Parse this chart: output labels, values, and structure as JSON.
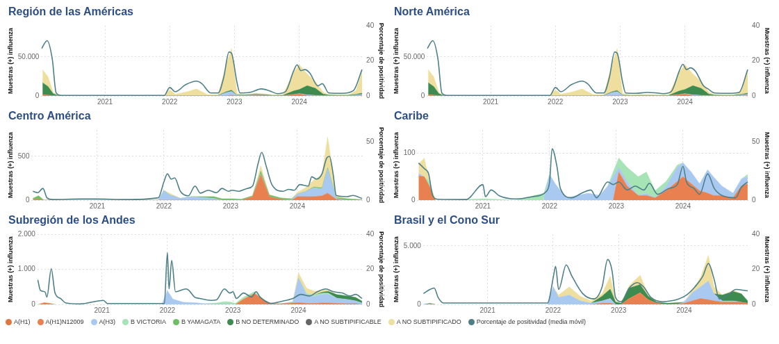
{
  "chart_data": [
    {
      "type": "area",
      "title": "Región de las Américas",
      "ylabel": "Muestras (+) influenza",
      "y2label": "Porcentaje de positividad",
      "stacked": true,
      "grid": true,
      "x": [
        "2020-01-15",
        "2020-02-15",
        "2020-03-15",
        "2020-04-15",
        "2020-07-01",
        "2021-01-01",
        "2021-07-01",
        "2021-12-01",
        "2022-01-01",
        "2022-02-01",
        "2022-04-01",
        "2022-06-01",
        "2022-08-01",
        "2022-10-01",
        "2022-11-15",
        "2022-12-15",
        "2023-01-15",
        "2023-03-01",
        "2023-05-01",
        "2023-06-15",
        "2023-08-01",
        "2023-10-01",
        "2023-12-01",
        "2024-01-01",
        "2024-02-15",
        "2024-04-01",
        "2024-05-15",
        "2024-06-15",
        "2024-08-01",
        "2024-10-01",
        "2024-11-15",
        "2024-12-20"
      ],
      "xlim": [
        "2020-01-08",
        "2025-01-01"
      ],
      "xticks": [
        {
          "value": "2021-01-01",
          "label": "2021"
        },
        {
          "value": "2022-01-01",
          "label": "2022"
        },
        {
          "value": "2023-01-01",
          "label": "2023"
        },
        {
          "value": "2024-01-01",
          "label": "2024"
        }
      ],
      "ylim": [
        0,
        90000
      ],
      "yticks": [
        0,
        {
          "value": 50000,
          "label": "50.000"
        }
      ],
      "y2lim": [
        0,
        40
      ],
      "y2ticks": [
        0,
        20,
        40
      ],
      "series": [
        {
          "type": "area",
          "color": "#e8804f",
          "values": [
            1500,
            1000,
            300,
            0,
            0,
            0,
            0,
            0,
            0,
            0,
            0,
            0,
            0,
            0,
            300,
            800,
            300,
            500,
            1000,
            800,
            300,
            300,
            1500,
            2500,
            500,
            300,
            200,
            200,
            200,
            200,
            300,
            500
          ]
        },
        {
          "type": "area",
          "color": "#a9c9f0",
          "values": [
            0,
            0,
            0,
            0,
            0,
            0,
            0,
            0,
            300,
            300,
            300,
            300,
            300,
            300,
            4000,
            5000,
            500,
            300,
            300,
            300,
            200,
            200,
            300,
            500,
            800,
            500,
            300,
            300,
            300,
            300,
            800,
            1500
          ]
        },
        {
          "type": "area",
          "color": "#3d8b4f",
          "values": [
            15500,
            11000,
            2500,
            0,
            0,
            0,
            0,
            0,
            0,
            0,
            0,
            0,
            0,
            300,
            1000,
            1500,
            300,
            500,
            1000,
            700,
            300,
            300,
            4600,
            5200,
            11800,
            8900,
            1800,
            700,
            500,
            500,
            800,
            1500
          ]
        },
        {
          "type": "area",
          "color": "#eedf9e",
          "values": [
            16700,
            12500,
            1800,
            0,
            0,
            0,
            0,
            200,
            7700,
            2000,
            4600,
            8600,
            1500,
            700,
            34700,
            53500,
            1900,
            500,
            1000,
            800,
            300,
            700,
            24100,
            31800,
            15000,
            8800,
            2400,
            600,
            200,
            200,
            4500,
            27500
          ]
        },
        {
          "type": "line",
          "axis": "y2",
          "color": "#4d7f87",
          "x": [
            "2020-01-10",
            "2020-02-10",
            "2020-03-10",
            "2020-04-01",
            "2020-05-01",
            "2021-12-01",
            "2022-01-01",
            "2022-02-01",
            "2022-04-01",
            "2022-06-01",
            "2022-07-01",
            "2022-08-20",
            "2022-10-01",
            "2022-11-01",
            "2022-12-01",
            "2022-12-15",
            "2023-01-15",
            "2023-02-01",
            "2023-04-01",
            "2023-06-01",
            "2023-07-15",
            "2023-09-01",
            "2023-10-15",
            "2023-12-01",
            "2023-12-20",
            "2024-01-10",
            "2024-02-01",
            "2024-03-01",
            "2024-04-15",
            "2024-05-10",
            "2024-06-15",
            "2024-09-01",
            "2024-11-01",
            "2024-12-20"
          ],
          "values": [
            27,
            31.5,
            21,
            1.7,
            0.3,
            0.3,
            4.8,
            2.4,
            6.4,
            8.4,
            7,
            1.7,
            1.7,
            10.4,
            25,
            24.4,
            7.7,
            1.7,
            2.1,
            4,
            3,
            1.3,
            2.4,
            14.4,
            17.7,
            14.4,
            15,
            13,
            5.7,
            7,
            1.7,
            1.5,
            3,
            15
          ]
        }
      ]
    },
    {
      "type": "area",
      "title": "Norte América",
      "ylabel": "Muestras (+) influenza",
      "y2label": "Muestras (+) influenza",
      "stacked": true,
      "grid": true,
      "x": [
        "2020-01-15",
        "2020-02-15",
        "2020-03-15",
        "2020-04-15",
        "2020-07-01",
        "2021-01-01",
        "2021-07-01",
        "2021-12-01",
        "2022-01-01",
        "2022-02-01",
        "2022-04-01",
        "2022-06-01",
        "2022-08-01",
        "2022-10-01",
        "2022-11-15",
        "2022-12-15",
        "2023-01-15",
        "2023-03-01",
        "2023-05-01",
        "2023-06-15",
        "2023-08-01",
        "2023-10-01",
        "2023-12-01",
        "2024-01-01",
        "2024-02-15",
        "2024-04-01",
        "2024-05-15",
        "2024-06-15",
        "2024-08-01",
        "2024-10-01",
        "2024-11-15",
        "2024-12-20"
      ],
      "xlim": [
        "2020-01-08",
        "2025-01-01"
      ],
      "xticks": [
        {
          "value": "2021-01-01",
          "label": "2021"
        },
        {
          "value": "2022-01-01",
          "label": "2022"
        },
        {
          "value": "2023-01-01",
          "label": "2023"
        },
        {
          "value": "2024-01-01",
          "label": "2024"
        }
      ],
      "ylim": [
        0,
        90000
      ],
      "yticks": [
        0,
        {
          "value": 50000,
          "label": "50.000"
        }
      ],
      "y2lim": [
        0,
        40
      ],
      "y2ticks": [
        0,
        20,
        40
      ],
      "series": [
        {
          "type": "area",
          "color": "#e8804f",
          "values": [
            1500,
            1000,
            300,
            0,
            0,
            0,
            0,
            0,
            0,
            0,
            0,
            0,
            0,
            0,
            200,
            500,
            200,
            200,
            300,
            300,
            200,
            200,
            1500,
            2500,
            500,
            300,
            200,
            200,
            200,
            200,
            300,
            500
          ]
        },
        {
          "type": "area",
          "color": "#a9c9f0",
          "values": [
            0,
            0,
            0,
            0,
            0,
            0,
            0,
            0,
            200,
            200,
            200,
            200,
            200,
            300,
            4000,
            5000,
            500,
            200,
            200,
            200,
            200,
            200,
            300,
            500,
            800,
            500,
            300,
            300,
            300,
            300,
            800,
            1500
          ]
        },
        {
          "type": "area",
          "color": "#3d8b4f",
          "values": [
            15500,
            11000,
            2500,
            0,
            0,
            0,
            0,
            0,
            0,
            0,
            0,
            0,
            0,
            300,
            1000,
            1500,
            300,
            300,
            300,
            300,
            300,
            300,
            4600,
            5200,
            11800,
            8900,
            1800,
            700,
            500,
            500,
            800,
            1500
          ]
        },
        {
          "type": "area",
          "color": "#eedf9e",
          "values": [
            16700,
            12500,
            1800,
            0,
            0,
            0,
            0,
            200,
            7700,
            2000,
            4600,
            8600,
            1500,
            700,
            34700,
            53500,
            1900,
            500,
            500,
            500,
            300,
            700,
            24100,
            31800,
            15000,
            8800,
            2400,
            600,
            200,
            200,
            4500,
            27500
          ]
        },
        {
          "type": "line",
          "axis": "y2",
          "color": "#4d7f87",
          "x": [
            "2020-01-10",
            "2020-02-10",
            "2020-03-10",
            "2020-04-01",
            "2020-05-01",
            "2021-12-01",
            "2022-01-01",
            "2022-02-01",
            "2022-04-01",
            "2022-06-01",
            "2022-07-01",
            "2022-08-20",
            "2022-10-01",
            "2022-11-01",
            "2022-12-01",
            "2022-12-15",
            "2023-01-15",
            "2023-02-01",
            "2023-04-01",
            "2023-06-01",
            "2023-07-15",
            "2023-09-01",
            "2023-10-15",
            "2023-12-01",
            "2023-12-20",
            "2024-01-10",
            "2024-02-01",
            "2024-03-01",
            "2024-04-15",
            "2024-05-10",
            "2024-06-15",
            "2024-09-01",
            "2024-11-01",
            "2024-12-20"
          ],
          "values": [
            27,
            31.5,
            21,
            1.7,
            0.3,
            0.3,
            4.8,
            2.4,
            6.4,
            8.4,
            7,
            1.7,
            1.7,
            10.4,
            25,
            24.4,
            7.7,
            1.7,
            1.5,
            2,
            1.8,
            1.3,
            2.4,
            14.4,
            18,
            15,
            16,
            14,
            5.7,
            4,
            1.7,
            1.5,
            2,
            15
          ]
        }
      ]
    },
    {
      "type": "area",
      "title": "Centro América",
      "ylabel": "Muestras (+) influenza",
      "y2label": "Porcentaje de positividad",
      "stacked": true,
      "grid": true,
      "x": [
        "2020-01-15",
        "2020-02-15",
        "2020-03-15",
        "2020-04-15",
        "2020-07-01",
        "2021-01-01",
        "2021-07-01",
        "2021-12-01",
        "2022-01-01",
        "2022-02-01",
        "2022-04-01",
        "2022-06-01",
        "2022-08-01",
        "2022-10-01",
        "2022-11-15",
        "2022-12-15",
        "2023-01-15",
        "2023-03-01",
        "2023-05-01",
        "2023-06-15",
        "2023-08-01",
        "2023-10-01",
        "2023-12-01",
        "2024-01-01",
        "2024-02-15",
        "2024-04-01",
        "2024-05-15",
        "2024-06-15",
        "2024-08-01",
        "2024-10-01",
        "2024-11-15",
        "2024-12-20"
      ],
      "xlim": [
        "2020-01-08",
        "2025-01-01"
      ],
      "xticks": [
        {
          "value": "2021-01-01",
          "label": "2021"
        },
        {
          "value": "2022-01-01",
          "label": "2022"
        },
        {
          "value": "2023-01-01",
          "label": "2023"
        },
        {
          "value": "2024-01-01",
          "label": "2024"
        }
      ],
      "ylim": [
        0,
        800
      ],
      "yticks": [
        0,
        500
      ],
      "y2lim": [
        0,
        60
      ],
      "y2ticks": [
        0,
        50
      ],
      "series": [
        {
          "type": "area",
          "color": "#e8804f",
          "values": [
            10,
            10,
            0,
            0,
            0,
            0,
            0,
            0,
            0,
            0,
            0,
            0,
            0,
            0,
            0,
            0,
            0,
            0,
            40,
            290,
            40,
            10,
            0,
            40,
            40,
            40,
            50,
            80,
            10,
            0,
            0,
            0
          ]
        },
        {
          "type": "area",
          "color": "#a9c9f0",
          "values": [
            0,
            0,
            0,
            0,
            0,
            0,
            0,
            0,
            110,
            60,
            20,
            40,
            30,
            20,
            0,
            0,
            0,
            0,
            0,
            10,
            0,
            0,
            5,
            30,
            60,
            100,
            80,
            280,
            10,
            0,
            0,
            0
          ]
        },
        {
          "type": "area",
          "color": "#6cbf62",
          "values": [
            10,
            40,
            0,
            0,
            0,
            0,
            0,
            0,
            0,
            0,
            0,
            0,
            10,
            20,
            15,
            15,
            15,
            10,
            10,
            30,
            20,
            15,
            10,
            0,
            0,
            10,
            10,
            10,
            10,
            15,
            10,
            5
          ]
        },
        {
          "type": "area",
          "color": "#eedf9e",
          "values": [
            0,
            0,
            0,
            0,
            0,
            0,
            0,
            0,
            0,
            20,
            0,
            0,
            0,
            0,
            0,
            0,
            0,
            0,
            0,
            60,
            0,
            0,
            0,
            20,
            40,
            80,
            150,
            350,
            20,
            0,
            0,
            0
          ]
        },
        {
          "type": "line",
          "axis": "y2",
          "color": "#4d7f87",
          "x": [
            "2020-01-15",
            "2020-02-10",
            "2020-03-10",
            "2020-04-01",
            "2020-05-01",
            "2020-10-01",
            "2021-01-01",
            "2021-06-01",
            "2021-12-01",
            "2022-01-01",
            "2022-01-20",
            "2022-02-10",
            "2022-03-01",
            "2022-04-01",
            "2022-05-15",
            "2022-06-20",
            "2022-07-20",
            "2022-09-01",
            "2022-10-15",
            "2022-11-15",
            "2022-12-20",
            "2023-01-10",
            "2023-02-15",
            "2023-04-01",
            "2023-05-01",
            "2023-06-01",
            "2023-06-20",
            "2023-07-15",
            "2023-08-15",
            "2023-10-15",
            "2023-11-15",
            "2023-12-15",
            "2024-01-15",
            "2024-03-01",
            "2024-03-20",
            "2024-04-15",
            "2024-05-15",
            "2024-06-10",
            "2024-06-25",
            "2024-07-15",
            "2024-08-01",
            "2024-10-01",
            "2024-11-01",
            "2024-12-20"
          ],
          "values": [
            7.6,
            6.4,
            10,
            2,
            0.5,
            1,
            1,
            0.5,
            2,
            15.6,
            22.5,
            18,
            19,
            7.6,
            3.7,
            12,
            6,
            8.5,
            6.4,
            10,
            7.6,
            8.5,
            7.6,
            10,
            12,
            31.6,
            40.8,
            29,
            13.3,
            7.6,
            9.2,
            8.5,
            13.3,
            12,
            20,
            18,
            22.5,
            36,
            37.4,
            22.5,
            4,
            3,
            4,
            1.4
          ]
        }
      ]
    },
    {
      "type": "area",
      "title": "Caribe",
      "ylabel": "Muestras (+) influenza",
      "y2label": "Muestras (+) influenza",
      "stacked": true,
      "grid": true,
      "x": [
        "2020-01-15",
        "2020-02-15",
        "2020-03-15",
        "2020-04-15",
        "2020-07-01",
        "2021-01-01",
        "2021-07-01",
        "2021-12-01",
        "2022-01-01",
        "2022-02-01",
        "2022-04-01",
        "2022-06-01",
        "2022-08-01",
        "2022-10-01",
        "2022-11-15",
        "2022-12-15",
        "2023-01-15",
        "2023-03-01",
        "2023-05-01",
        "2023-06-15",
        "2023-08-01",
        "2023-10-01",
        "2023-12-01",
        "2024-01-01",
        "2024-02-15",
        "2024-04-01",
        "2024-05-15",
        "2024-06-15",
        "2024-08-01",
        "2024-10-01",
        "2024-11-15",
        "2024-12-20"
      ],
      "xlim": [
        "2020-01-08",
        "2025-01-01"
      ],
      "xticks": [
        {
          "value": "2021-01-01",
          "label": "2021"
        },
        {
          "value": "2022-01-01",
          "label": "2022"
        },
        {
          "value": "2023-01-01",
          "label": "2023"
        },
        {
          "value": "2024-01-01",
          "label": "2024"
        }
      ],
      "ylim": [
        0,
        150
      ],
      "yticks": [
        0,
        100
      ],
      "y2lim": [
        0,
        60
      ],
      "y2ticks": [
        0,
        50
      ],
      "series": [
        {
          "type": "area",
          "color": "#e8804f",
          "values": [
            52,
            50,
            30,
            0,
            null,
            null,
            null,
            null,
            null,
            null,
            null,
            null,
            null,
            null,
            null,
            0,
            60,
            30,
            10,
            10,
            5,
            20,
            40,
            50,
            35,
            20,
            15,
            10,
            10,
            5,
            30,
            35
          ]
        },
        {
          "type": "area",
          "color": "#a9c9f0",
          "values": [
            5,
            0,
            null,
            null,
            null,
            null,
            null,
            5,
            55,
            35,
            5,
            10,
            15,
            10,
            30,
            50,
            10,
            10,
            0,
            5,
            0,
            10,
            30,
            30,
            25,
            15,
            50,
            40,
            20,
            10,
            15,
            15
          ]
        },
        {
          "type": "area",
          "color": "#a6e3b5",
          "values": [
            null,
            0,
            10,
            0,
            0,
            3,
            0,
            10,
            0,
            null,
            null,
            null,
            null,
            null,
            0,
            10,
            20,
            30,
            40,
            45,
            15,
            10,
            5,
            0,
            null,
            null,
            null,
            null,
            null,
            null,
            0,
            5
          ]
        },
        {
          "type": "area",
          "color": "#eedf9e",
          "values": [
            20,
            40,
            0,
            null,
            null,
            null,
            null,
            null,
            null,
            null,
            null,
            null,
            null,
            null,
            null,
            null,
            null,
            null,
            null,
            null,
            null,
            null,
            null,
            null,
            null,
            null,
            null,
            null,
            null,
            null,
            null,
            null
          ]
        },
        {
          "type": "line",
          "axis": "y2",
          "color": "#4d7f87",
          "x": [
            "2020-01-15",
            "2020-02-15",
            "2020-03-10",
            "2020-04-01",
            "2020-05-01",
            "2020-10-01",
            "2021-01-01",
            "2021-01-15",
            "2021-02-15",
            "2021-04-01",
            "2021-07-01",
            "2021-10-01",
            "2021-12-15",
            "2022-01-01",
            "2022-01-15",
            "2022-02-10",
            "2022-03-01",
            "2022-05-01",
            "2022-07-01",
            "2022-08-15",
            "2022-09-15",
            "2022-11-15",
            "2022-12-15",
            "2023-01-15",
            "2023-03-01",
            "2023-04-15",
            "2023-06-01",
            "2023-07-01",
            "2023-08-15",
            "2023-10-15",
            "2023-12-01",
            "2024-01-01",
            "2024-01-20",
            "2024-03-01",
            "2024-04-01",
            "2024-05-15",
            "2024-06-20",
            "2024-08-01",
            "2024-10-15",
            "2024-11-15",
            "2024-12-20"
          ],
          "values": [
            31.7,
            27,
            22.5,
            4,
            0.7,
            0.5,
            13.3,
            3,
            8.7,
            3.7,
            1,
            3,
            7.6,
            15.6,
            44,
            29,
            10,
            2,
            6.4,
            8.7,
            2,
            15.6,
            13.3,
            15.6,
            8.7,
            12,
            8.7,
            14.4,
            5,
            10,
            13.3,
            29,
            15.6,
            10,
            5,
            22.5,
            10,
            4,
            2,
            11,
            15.6
          ]
        }
      ]
    },
    {
      "type": "area",
      "title": "Subregión de los Andes",
      "ylabel": "Muestras (+) influenza",
      "y2label": "Porcentaje de positividad",
      "stacked": true,
      "grid": true,
      "legend": "bottom",
      "x": [
        "2020-01-15",
        "2020-02-15",
        "2020-03-15",
        "2020-04-15",
        "2020-07-01",
        "2021-01-01",
        "2021-07-01",
        "2021-12-01",
        "2022-01-01",
        "2022-02-01",
        "2022-04-01",
        "2022-06-01",
        "2022-08-01",
        "2022-10-01",
        "2022-11-15",
        "2022-12-15",
        "2023-01-15",
        "2023-03-01",
        "2023-05-01",
        "2023-06-15",
        "2023-08-01",
        "2023-10-01",
        "2023-12-01",
        "2024-01-01",
        "2024-02-15",
        "2024-04-01",
        "2024-05-15",
        "2024-06-15",
        "2024-08-01",
        "2024-10-01",
        "2024-11-15",
        "2024-12-20"
      ],
      "xlim": [
        "2020-01-08",
        "2025-01-01"
      ],
      "xticks": [
        {
          "value": "2021-01-01",
          "label": "2021"
        },
        {
          "value": "2022-01-01",
          "label": "2022"
        },
        {
          "value": "2023-01-01",
          "label": "2023"
        },
        {
          "value": "2024-01-01",
          "label": "2024"
        }
      ],
      "ylim": [
        0,
        2000
      ],
      "yticks": [
        0,
        {
          "value": 1000,
          "label": "1.000"
        },
        {
          "value": 2000,
          "label": "2.000"
        }
      ],
      "y2lim": [
        0,
        40
      ],
      "y2ticks": [
        0,
        20,
        40
      ],
      "series": [
        {
          "name": "A(H1)",
          "color": "#e0773e",
          "values": [
            null,
            null,
            null,
            null,
            null,
            null,
            null,
            null,
            null,
            null,
            null,
            null,
            null,
            null,
            null,
            null,
            null,
            null,
            null,
            null,
            null,
            null,
            null,
            null,
            null,
            null,
            null,
            null,
            null,
            null,
            null,
            null
          ]
        },
        {
          "name": "A(H1)N12009",
          "color": "#e8804f",
          "values": [
            0,
            50,
            30,
            0,
            null,
            null,
            null,
            null,
            null,
            null,
            null,
            null,
            null,
            null,
            null,
            null,
            0,
            150,
            310,
            150,
            20,
            20,
            40,
            50,
            30,
            30,
            40,
            40,
            30,
            20,
            20,
            0
          ]
        },
        {
          "name": "A(H3)",
          "color": "#a9c9f0",
          "values": [
            null,
            null,
            null,
            null,
            null,
            null,
            null,
            0,
            390,
            150,
            60,
            50,
            20,
            20,
            20,
            20,
            0,
            null,
            null,
            null,
            null,
            0,
            30,
            700,
            250,
            200,
            250,
            250,
            150,
            120,
            80,
            40
          ]
        },
        {
          "name": "B VICTORIA",
          "color": "#a6e3b5",
          "values": [
            null,
            null,
            null,
            null,
            null,
            null,
            null,
            null,
            null,
            null,
            null,
            null,
            0,
            20,
            60,
            50,
            30,
            60,
            50,
            20,
            0,
            0,
            10,
            0,
            30,
            40,
            30,
            30,
            0,
            null,
            null,
            null
          ]
        },
        {
          "name": "B YAMAGATA",
          "color": "#6cbf62",
          "values": [
            null,
            null,
            null,
            null,
            null,
            null,
            null,
            null,
            null,
            null,
            null,
            null,
            null,
            null,
            null,
            null,
            null,
            null,
            null,
            null,
            null,
            null,
            null,
            null,
            null,
            null,
            null,
            null,
            null,
            null,
            null,
            null
          ]
        },
        {
          "name": "B NO DETERMINADO",
          "color": "#3d8b4f",
          "values": [
            null,
            null,
            null,
            null,
            null,
            null,
            null,
            null,
            null,
            null,
            null,
            null,
            null,
            null,
            null,
            null,
            null,
            null,
            null,
            null,
            null,
            null,
            null,
            null,
            null,
            0,
            30,
            50,
            100,
            100,
            100,
            50
          ]
        },
        {
          "name": "A NO SUBTIPIFICABLE",
          "color": "#666666",
          "values": [
            null,
            null,
            null,
            null,
            null,
            null,
            null,
            null,
            null,
            null,
            null,
            null,
            null,
            null,
            null,
            null,
            null,
            null,
            null,
            null,
            null,
            null,
            null,
            null,
            null,
            null,
            null,
            null,
            null,
            null,
            null,
            null
          ]
        },
        {
          "name": "A NO SUBTIPIFICADO",
          "color": "#eedf9e",
          "values": [
            null,
            null,
            null,
            null,
            null,
            null,
            null,
            null,
            null,
            null,
            null,
            null,
            null,
            null,
            null,
            null,
            null,
            null,
            null,
            null,
            null,
            null,
            0,
            150,
            150,
            100,
            70,
            40,
            0,
            null,
            null,
            null
          ]
        },
        {
          "type": "line",
          "axis": "y2",
          "name": "Porcentaje de positividad (media móvil)",
          "color": "#4d7f87",
          "x": [
            "2020-01-10",
            "2020-01-25",
            "2020-02-20",
            "2020-03-01",
            "2020-03-25",
            "2020-04-15",
            "2020-05-15",
            "2020-06-15",
            "2020-09-01",
            "2021-01-10",
            "2021-02-01",
            "2021-12-15",
            "2022-01-01",
            "2022-01-10",
            "2022-01-25",
            "2022-02-15",
            "2022-04-15",
            "2022-05-01",
            "2022-06-01",
            "2022-07-01",
            "2022-09-01",
            "2022-10-01",
            "2022-11-15",
            "2022-12-15",
            "2023-01-01",
            "2023-01-20",
            "2023-03-01",
            "2023-04-15",
            "2023-05-10",
            "2023-06-01",
            "2023-08-01",
            "2023-10-01",
            "2023-12-01",
            "2024-01-15",
            "2024-03-01",
            "2024-04-15",
            "2024-06-01",
            "2024-07-15",
            "2024-09-01",
            "2024-10-15",
            "2024-11-15",
            "2024-12-20"
          ],
          "values": [
            14,
            8,
            7,
            4.2,
            20.3,
            6.5,
            3.4,
            0.8,
            0.3,
            2.3,
            0.5,
            0.5,
            29.5,
            8.8,
            25,
            7.2,
            8.8,
            8,
            4.2,
            3.4,
            2.3,
            2.6,
            8.8,
            6.5,
            7.2,
            3.4,
            6.5,
            4.2,
            7.2,
            4.2,
            0.6,
            1.8,
            3.4,
            5.7,
            4.8,
            7.2,
            8.8,
            7.2,
            6.5,
            4.8,
            5.7,
            3.4
          ]
        }
      ]
    },
    {
      "type": "area",
      "title": "Brasil y el Cono Sur",
      "ylabel": "Muestras (+) influenza",
      "y2label": "Muestras (+) influenza",
      "stacked": true,
      "grid": true,
      "x": [
        "2020-01-15",
        "2020-02-15",
        "2020-03-15",
        "2020-04-15",
        "2020-07-01",
        "2021-01-01",
        "2021-07-01",
        "2021-12-01",
        "2022-01-01",
        "2022-02-01",
        "2022-04-01",
        "2022-06-01",
        "2022-08-01",
        "2022-10-01",
        "2022-11-15",
        "2022-12-15",
        "2023-01-15",
        "2023-03-01",
        "2023-05-01",
        "2023-06-15",
        "2023-08-01",
        "2023-10-01",
        "2023-12-01",
        "2024-01-01",
        "2024-02-15",
        "2024-04-01",
        "2024-05-15",
        "2024-06-15",
        "2024-08-01",
        "2024-10-01",
        "2024-11-15",
        "2024-12-20"
      ],
      "xlim": [
        "2020-01-08",
        "2025-01-01"
      ],
      "xticks": [
        {
          "value": "2021-01-01",
          "label": "2021"
        },
        {
          "value": "2022-01-01",
          "label": "2022"
        },
        {
          "value": "2023-01-01",
          "label": "2023"
        },
        {
          "value": "2024-01-01",
          "label": "2024"
        }
      ],
      "ylim": [
        0,
        6000
      ],
      "yticks": [
        0,
        {
          "value": 5000,
          "label": "5.000"
        }
      ],
      "y2lim": [
        0,
        40
      ],
      "y2ticks": [
        0,
        20,
        40
      ],
      "series": [
        {
          "type": "area",
          "color": "#e8804f",
          "values": [
            0,
            30,
            0,
            null,
            null,
            null,
            null,
            null,
            null,
            null,
            null,
            null,
            0,
            100,
            100,
            0,
            0,
            500,
            1000,
            400,
            100,
            0,
            50,
            100,
            300,
            500,
            400,
            300,
            200,
            200,
            200,
            100
          ]
        },
        {
          "type": "area",
          "color": "#a9c9f0",
          "values": [
            null,
            null,
            null,
            null,
            null,
            null,
            null,
            0,
            1500,
            600,
            800,
            300,
            100,
            200,
            400,
            0,
            null,
            null,
            null,
            null,
            null,
            null,
            0,
            100,
            700,
            1000,
            1600,
            600,
            100,
            100,
            0,
            null
          ]
        },
        {
          "type": "area",
          "color": "#3d8b4f",
          "values": [
            0,
            60,
            0,
            null,
            null,
            null,
            null,
            null,
            null,
            null,
            null,
            null,
            0,
            400,
            800,
            200,
            100,
            900,
            700,
            300,
            100,
            100,
            100,
            0,
            null,
            null,
            null,
            0,
            500,
            800,
            700,
            200
          ]
        },
        {
          "type": "area",
          "color": "#eedf9e",
          "values": [
            null,
            null,
            null,
            null,
            null,
            null,
            null,
            null,
            0,
            200,
            700,
            400,
            200,
            200,
            1100,
            100,
            0,
            200,
            800,
            100,
            0,
            null,
            null,
            0,
            200,
            800,
            2200,
            600,
            0,
            100,
            0,
            null
          ]
        },
        {
          "type": "line",
          "axis": "y2",
          "color": "#4d7f87",
          "x": [
            "2020-01-10",
            "2020-02-15",
            "2020-03-10",
            "2020-04-01",
            "2020-05-01",
            "2021-12-01",
            "2022-01-05",
            "2022-01-15",
            "2022-02-01",
            "2022-03-15",
            "2022-04-15",
            "2022-06-15",
            "2022-08-15",
            "2022-10-01",
            "2022-11-01",
            "2022-11-25",
            "2022-12-15",
            "2023-01-15",
            "2023-03-01",
            "2023-04-15",
            "2023-05-20",
            "2023-07-01",
            "2023-09-01",
            "2023-12-01",
            "2024-01-15",
            "2024-03-01",
            "2024-04-15",
            "2024-05-15",
            "2024-06-15",
            "2024-07-15",
            "2024-09-01",
            "2024-10-15",
            "2024-12-20"
          ],
          "values": [
            6.2,
            8.5,
            9.3,
            3.9,
            0.8,
            0.8,
            17,
            21.7,
            8.5,
            22.5,
            16.3,
            6.2,
            3.1,
            10,
            25.6,
            19.4,
            3.9,
            1.6,
            9.3,
            12.4,
            10,
            3.9,
            1.6,
            3.1,
            5.4,
            10,
            16.3,
            23.3,
            14.7,
            3.1,
            5.4,
            8.5,
            7.7
          ]
        }
      ]
    }
  ]
}
